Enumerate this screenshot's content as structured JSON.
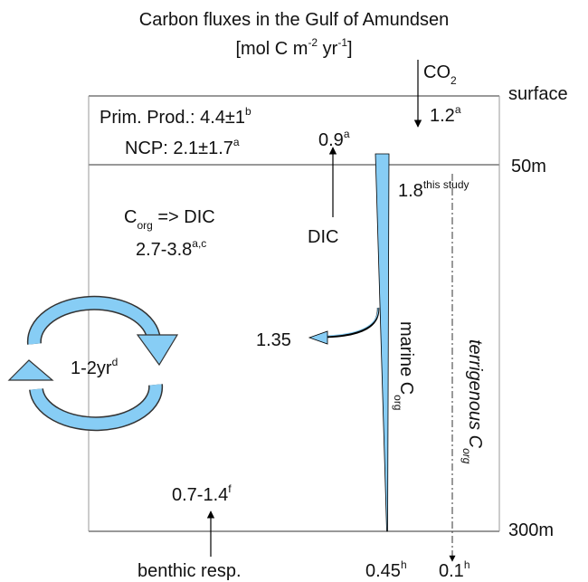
{
  "title": "Carbon fluxes in the Gulf of Amundsen",
  "units": {
    "pre": "[mol C m",
    "exp1": "-2",
    "mid": " yr",
    "exp2": "-1",
    "post": "]"
  },
  "depths": {
    "surface": "surface",
    "mid": "50m",
    "bottom": "300m"
  },
  "co2": {
    "text": "CO",
    "sub": "2"
  },
  "air_sea": {
    "text": "1.2",
    "sup": "a"
  },
  "primary_production": {
    "text": "Prim. Prod.: 4.4±1",
    "sup": "b"
  },
  "ncp": {
    "text": "NCP: 2.1±1.7",
    "sup": "a"
  },
  "dic_flux": {
    "text": "0.9",
    "sup": "a"
  },
  "dic": "DIC",
  "export_50m": {
    "text": "1.8",
    "sup": "this study"
  },
  "remineralization": {
    "text": "C",
    "sub": "org",
    "rest": " => DIC",
    "range": "2.7-3.8",
    "sup": "a,c"
  },
  "lateral": "1.35",
  "residence": {
    "text": "1-2yr",
    "sup": "d"
  },
  "marine": {
    "text": "marine C",
    "sub": "org"
  },
  "terrigenous": {
    "text": "terrigenous C",
    "sub": "org"
  },
  "benthic_flux": {
    "text": "0.7-1.4",
    "sup": "f"
  },
  "benthic": "benthic resp.",
  "marine_bottom": {
    "text": "0.45",
    "sup": "h"
  },
  "terrigenous_bottom": {
    "text": "0.1",
    "sup": "h"
  }
}
